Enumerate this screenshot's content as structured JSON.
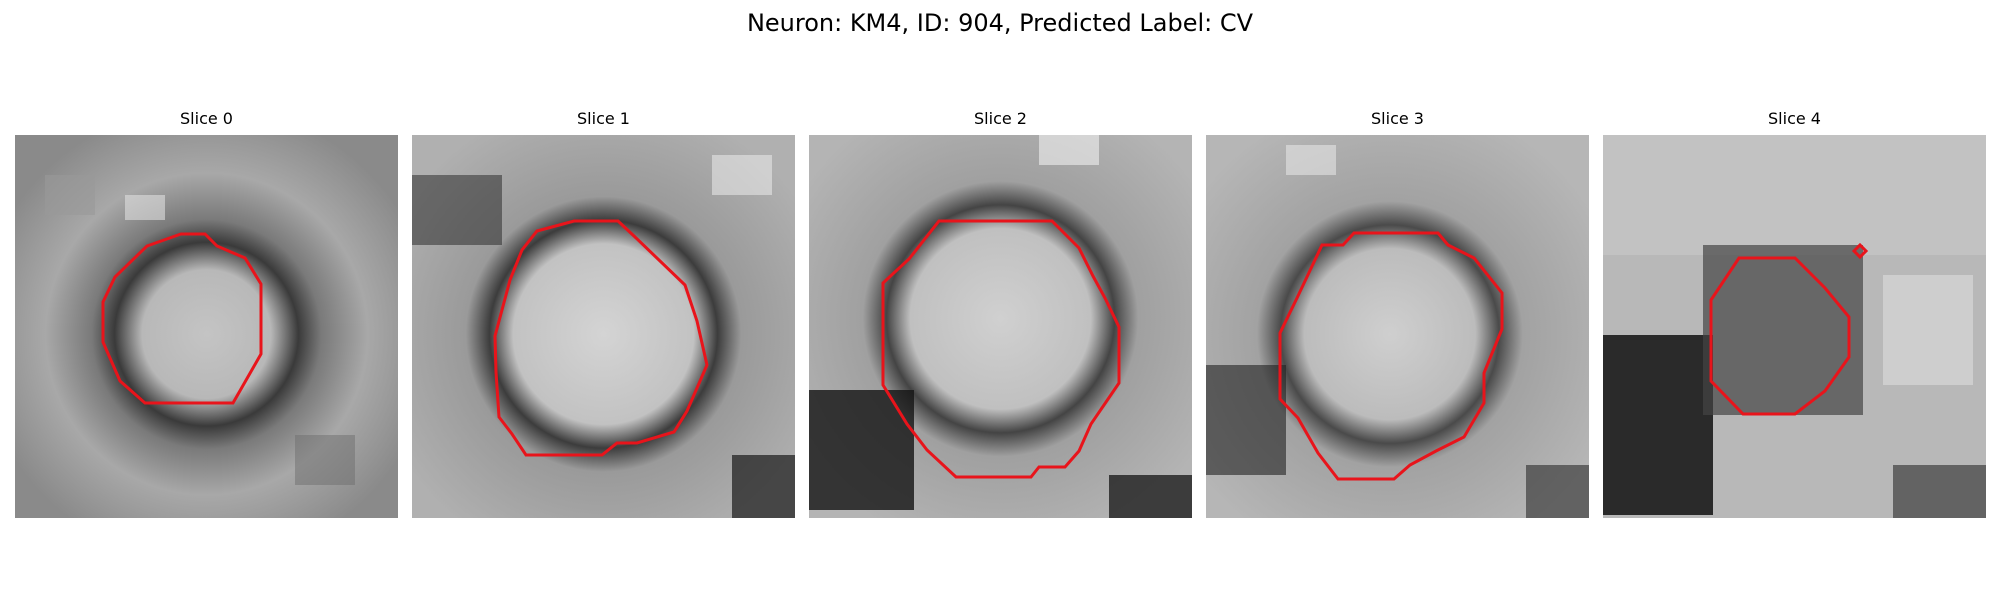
{
  "figure": {
    "title": "Neuron: KM4, ID: 904, Predicted Label: CV",
    "contour_color": "#e8141b",
    "panels": [
      {
        "title": "Slice 0"
      },
      {
        "title": "Slice 1"
      },
      {
        "title": "Slice 2"
      },
      {
        "title": "Slice 3"
      },
      {
        "title": "Slice 4"
      }
    ]
  }
}
